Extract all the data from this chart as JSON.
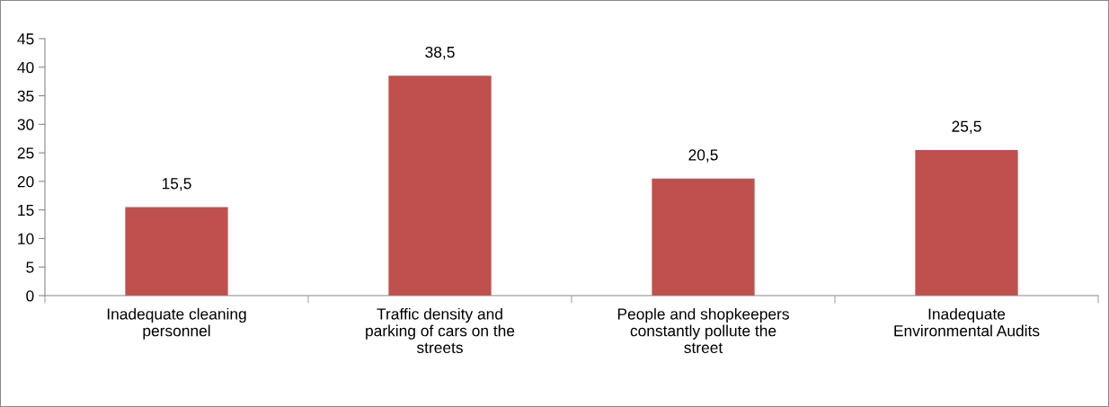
{
  "chart_data": {
    "type": "bar",
    "categories": [
      "Inadequate cleaning\npersonnel",
      "Traffic density and\nparking of cars on the\nstreets",
      "People and shopkeepers\nconstantly pollute the\nstreet",
      "Inadequate\nEnvironmental Audits"
    ],
    "values": [
      15.5,
      38.5,
      20.5,
      25.5
    ],
    "value_labels": [
      "15,5",
      "38,5",
      "20,5",
      "25,5"
    ],
    "color": "#c0504d",
    "ylim": [
      0,
      45
    ],
    "yticks": [
      0,
      5,
      10,
      15,
      20,
      25,
      30,
      35,
      40,
      45
    ],
    "grid": false,
    "legend": false
  }
}
